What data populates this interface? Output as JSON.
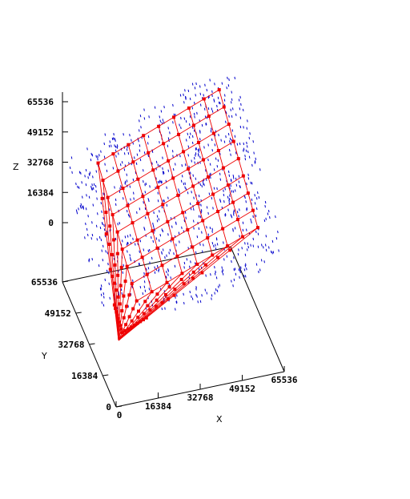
{
  "chart_data": {
    "type": "scatter",
    "projection": "3d",
    "title": "",
    "xlabel": "X",
    "ylabel": "Y",
    "zlabel": "Z",
    "xlim": [
      0,
      65536
    ],
    "ylim": [
      0,
      65536
    ],
    "zlim": [
      0,
      65536
    ],
    "x_ticks": [
      "0",
      "16384",
      "32768",
      "49152",
      "65536"
    ],
    "y_ticks": [
      "0",
      "16384",
      "32768",
      "49152",
      "65536"
    ],
    "z_ticks": [
      "0",
      "16384",
      "32768",
      "49152",
      "65536"
    ],
    "grid": false,
    "legend": "none",
    "colors": {
      "mesh": "#ee0000",
      "samples": "#0000cc",
      "axes": "#000000"
    },
    "mesh": {
      "description_units": "data",
      "x": [
        0,
        8192,
        16384,
        24576,
        32768,
        40960,
        49152,
        57344,
        65536
      ],
      "y": [
        0,
        8192,
        16384,
        24576,
        32768,
        40960,
        49152,
        57344,
        65536
      ]
    },
    "samples": {
      "count": 900
    }
  }
}
